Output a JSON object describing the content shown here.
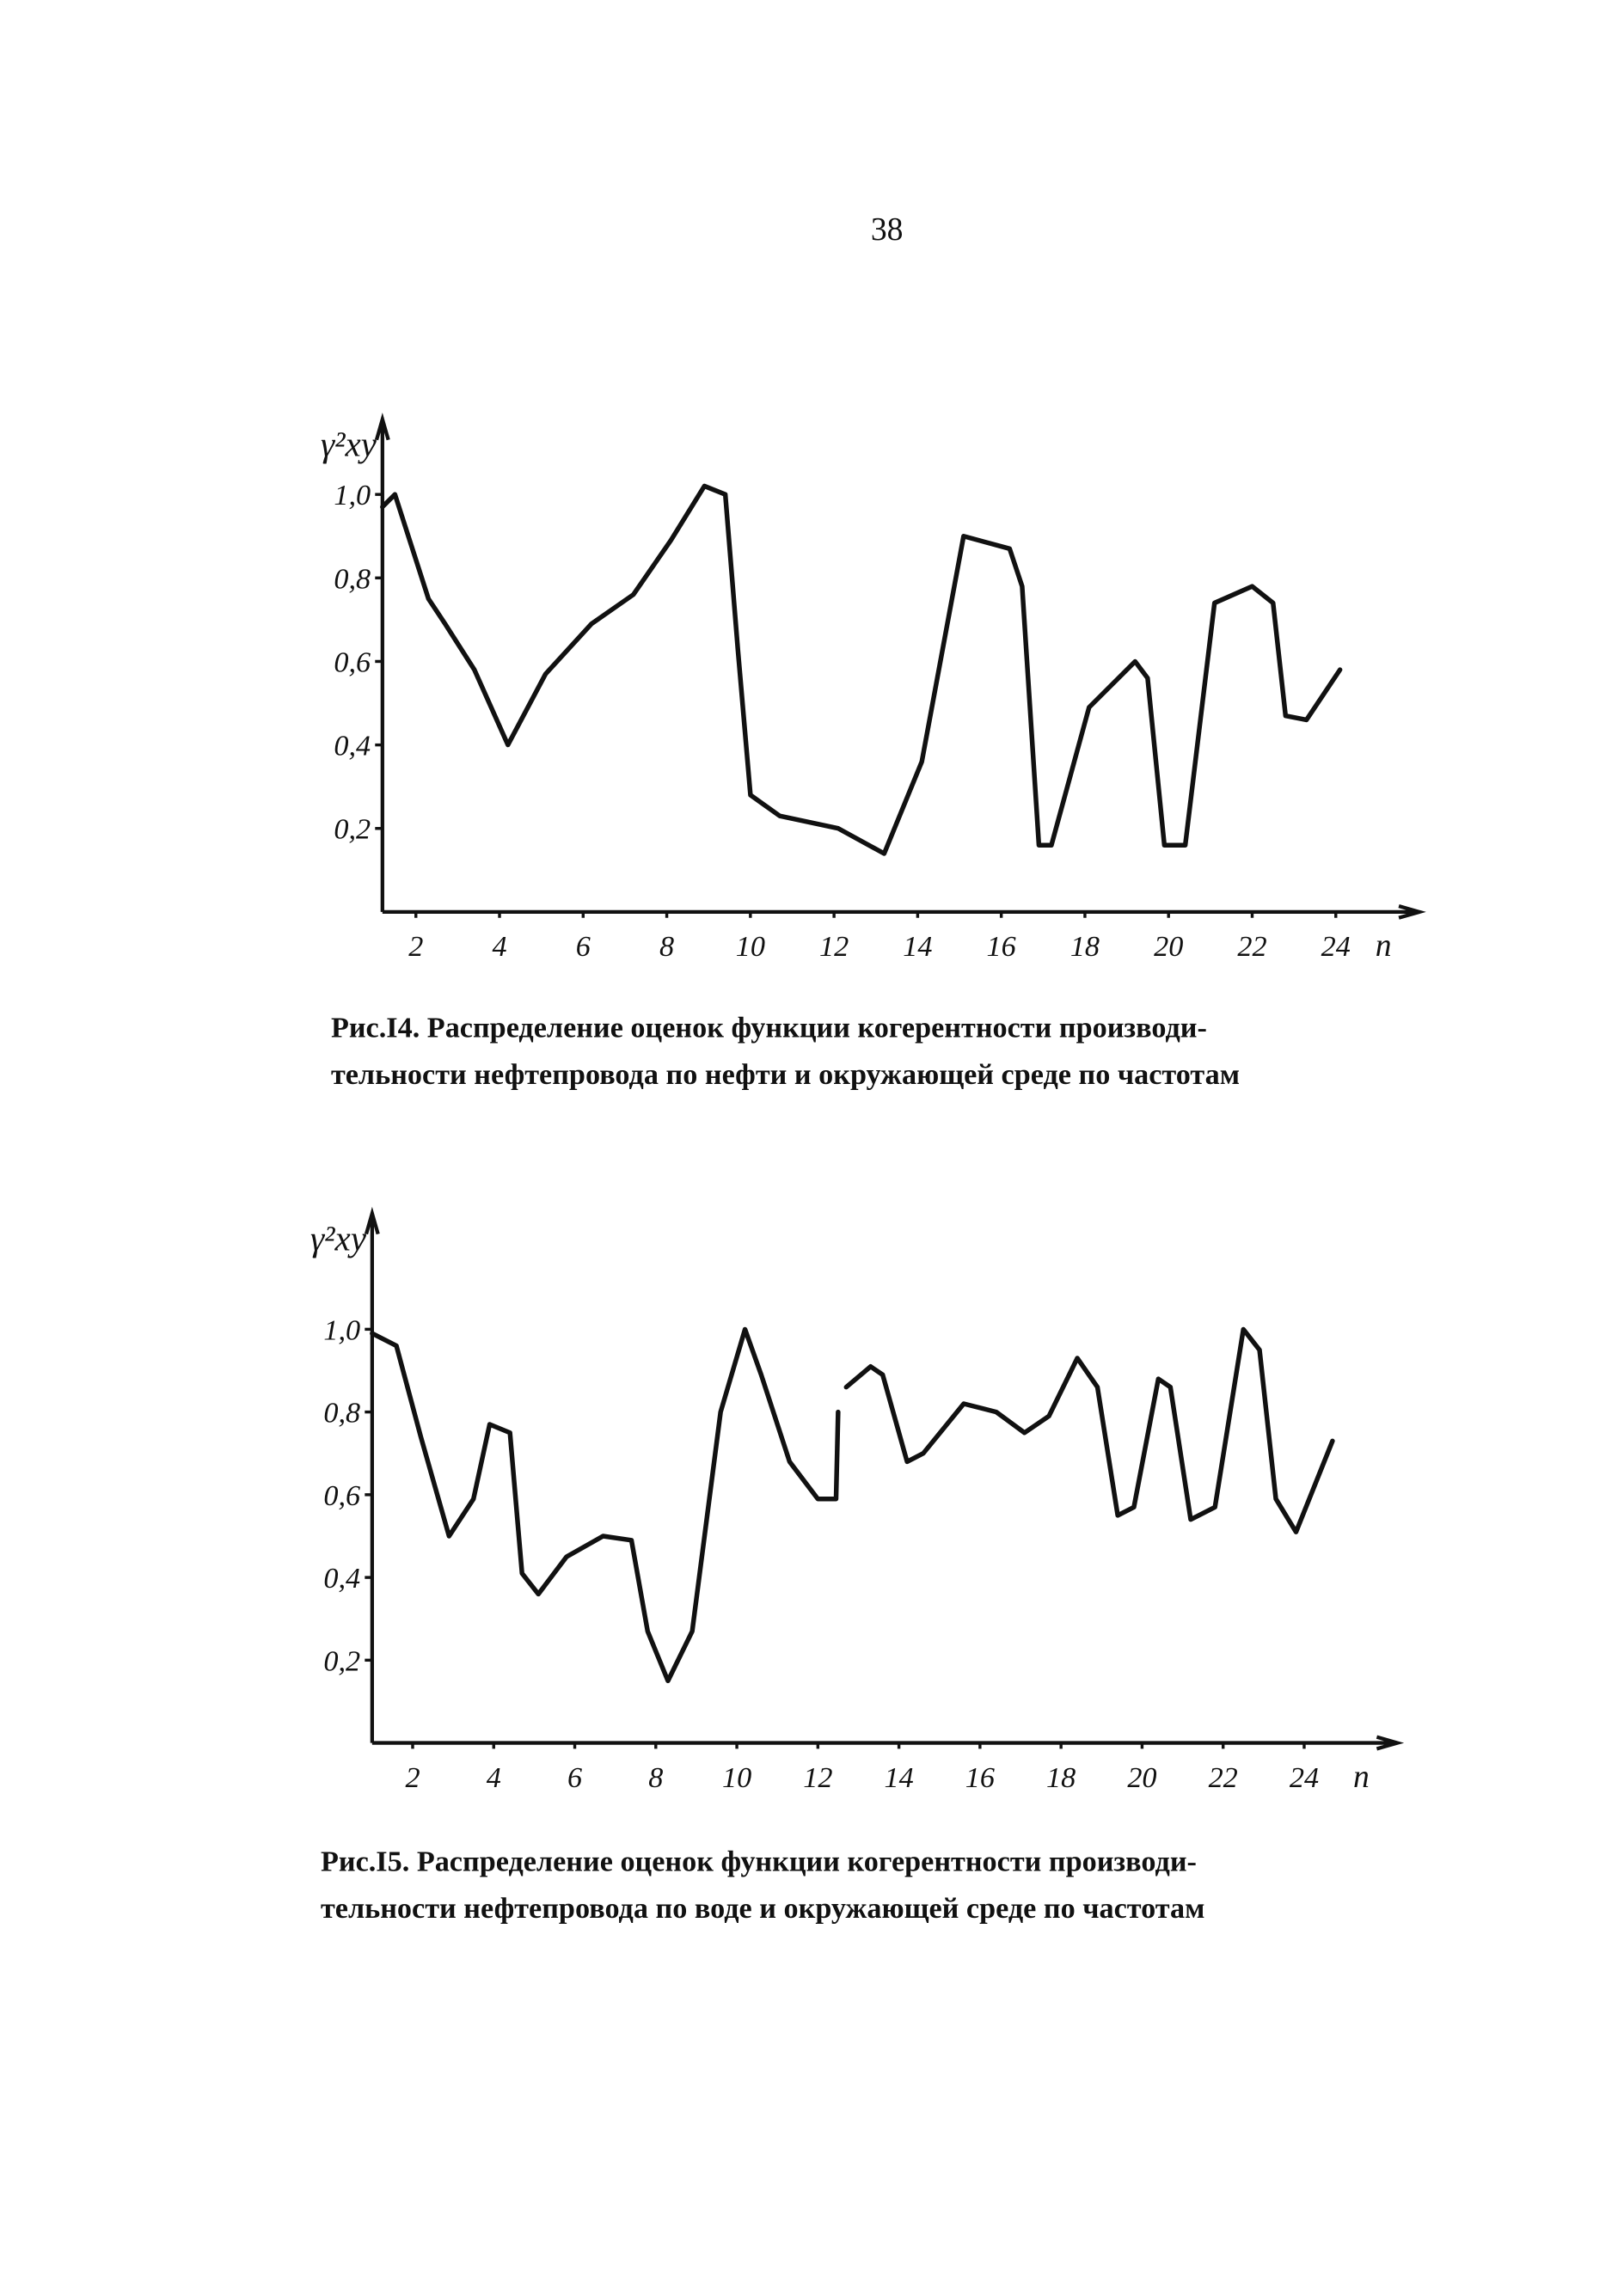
{
  "page_number": "38",
  "chart_data": [
    {
      "type": "line",
      "y_label": "γ²xy",
      "x_label": "n",
      "caption": [
        "Рис.I4. Распределение оценок функции когерентности производи-",
        "тельности нефтепровода по нефти и окружающей среде по частотам"
      ],
      "xlim": [
        1.2,
        26
      ],
      "ylim": [
        0,
        1.18
      ],
      "xticks": [
        2,
        4,
        6,
        8,
        10,
        12,
        14,
        16,
        18,
        20,
        22,
        24
      ],
      "yticks": [
        {
          "value": 0.2,
          "label": "0,2"
        },
        {
          "value": 0.4,
          "label": "0,4"
        },
        {
          "value": 0.6,
          "label": "0,6"
        },
        {
          "value": 0.8,
          "label": "0,8"
        },
        {
          "value": 1.0,
          "label": "1,0"
        }
      ],
      "series": [
        {
          "color": "#111111",
          "x": [
            1.2,
            1.5,
            2.3,
            2.7,
            3.4,
            4.2,
            5.1,
            6.2,
            7.2,
            8.1,
            8.9,
            9.4,
            9.7,
            10.0,
            10.7,
            12.1,
            13.2,
            14.1,
            15.1,
            16.2,
            16.5,
            16.9,
            17.2,
            18.1,
            19.2,
            19.5,
            19.9,
            20.4,
            21.1,
            22.0,
            22.5,
            22.8,
            23.3,
            24.1
          ],
          "values": [
            0.97,
            1.0,
            0.75,
            0.69,
            0.58,
            0.4,
            0.57,
            0.69,
            0.76,
            0.89,
            1.02,
            1.0,
            0.63,
            0.28,
            0.23,
            0.2,
            0.14,
            0.36,
            0.9,
            0.87,
            0.78,
            0.16,
            0.16,
            0.49,
            0.6,
            0.56,
            0.16,
            0.16,
            0.74,
            0.78,
            0.74,
            0.47,
            0.46,
            0.58
          ]
        }
      ]
    },
    {
      "type": "line",
      "y_label": "γ²xy",
      "x_label": "n",
      "caption": [
        "Рис.I5. Распределение оценок функции когерентности производи-",
        "тельности нефтепровода по воде и окружающей среде по частотам"
      ],
      "xlim": [
        1,
        26.3
      ],
      "ylim": [
        0,
        1.28
      ],
      "xticks": [
        2,
        4,
        6,
        8,
        10,
        12,
        14,
        16,
        18,
        20,
        22,
        24
      ],
      "yticks": [
        {
          "value": 0.2,
          "label": "0,2"
        },
        {
          "value": 0.4,
          "label": "0,4"
        },
        {
          "value": 0.6,
          "label": "0,6"
        },
        {
          "value": 0.8,
          "label": "0,8"
        },
        {
          "value": 1.0,
          "label": "1,0"
        }
      ],
      "series": [
        {
          "color": "#111111",
          "x": [
            1.0,
            1.6,
            2.2,
            2.9,
            3.5,
            3.9,
            4.4,
            4.7,
            5.1,
            5.8,
            6.7,
            7.4,
            7.8,
            8.3,
            8.9,
            9.6,
            10.2,
            10.6,
            11.3,
            12.0,
            12.45,
            12.5,
            12.6,
            12.7,
            13.3,
            13.6,
            14.2,
            14.6,
            15.6,
            16.4,
            17.1,
            17.7,
            18.4,
            18.9,
            19.4,
            19.8,
            20.4,
            20.7,
            21.2,
            21.8,
            22.5,
            22.9,
            23.3,
            23.8,
            24.7
          ],
          "values": [
            0.99,
            0.96,
            0.74,
            0.5,
            0.59,
            0.77,
            0.75,
            0.41,
            0.36,
            0.45,
            0.5,
            0.49,
            0.27,
            0.15,
            0.27,
            0.8,
            1.0,
            0.89,
            0.68,
            0.59,
            0.59,
            0.8,
            null,
            0.86,
            0.91,
            0.89,
            0.68,
            0.7,
            0.82,
            0.8,
            0.75,
            0.79,
            0.93,
            0.86,
            0.55,
            0.57,
            0.88,
            0.86,
            0.54,
            0.57,
            1.0,
            0.95,
            0.59,
            0.51,
            0.73
          ]
        }
      ]
    }
  ]
}
